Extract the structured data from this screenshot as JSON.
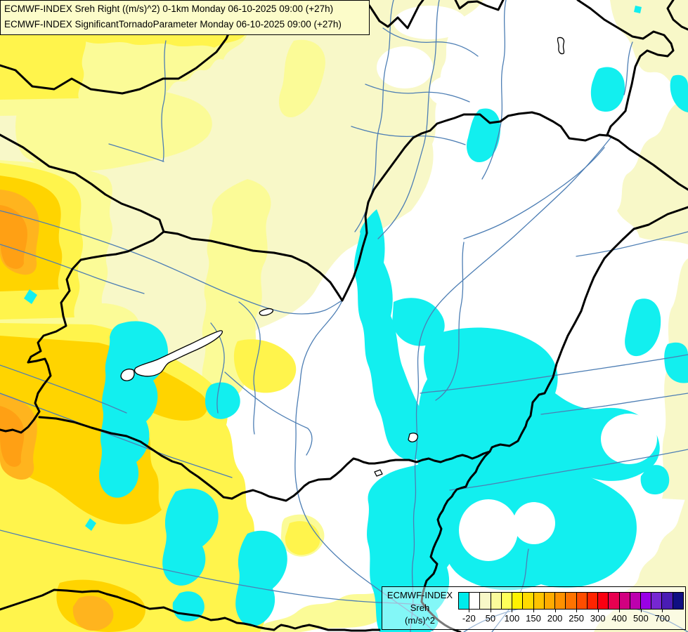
{
  "title_box": {
    "line1": "ECMWF-INDEX Sreh Right ((m/s)^2) 0-1km Monday 06-10-2025 09:00 (+27h)",
    "line2": "ECMWF-INDEX SignificantTornadoParameter Monday 06-10-2025 09:00 (+27h)"
  },
  "legend": {
    "product": "ECMWF-INDEX",
    "parameter": "Sreh",
    "units": "(m/s)^2",
    "cells": [
      "#00EBEB",
      "#FFFFFF",
      "#F8F8C8",
      "#FAFA9B",
      "#FFFF5A",
      "#FFF200",
      "#FFDB00",
      "#FFC300",
      "#FFAB00",
      "#FF9100",
      "#FF7300",
      "#FF4D00",
      "#FF2400",
      "#FA0011",
      "#E70050",
      "#D20080",
      "#BC00AE",
      "#9900E6",
      "#7627D2",
      "#4A1CB4",
      "#0F0F82"
    ],
    "ticks": [
      {
        "label": "-20",
        "boundary_index": 1
      },
      {
        "label": "50",
        "boundary_index": 3
      },
      {
        "label": "100",
        "boundary_index": 5
      },
      {
        "label": "150",
        "boundary_index": 7
      },
      {
        "label": "200",
        "boundary_index": 9
      },
      {
        "label": "250",
        "boundary_index": 11
      },
      {
        "label": "300",
        "boundary_index": 13
      },
      {
        "label": "400",
        "boundary_index": 15
      },
      {
        "label": "500",
        "boundary_index": 17
      },
      {
        "label": "700",
        "boundary_index": 19
      }
    ],
    "cell_count": 21
  },
  "map": {
    "palette": {
      "white": "#FFFFFF",
      "cream": "#F8F8C8",
      "lightyellow": "#FBFB97",
      "yellow": "#FFF44C",
      "gold": "#FFD400",
      "amber": "#FFB41E",
      "orange": "#FFA014",
      "cyan": "#12EFEF",
      "river": "#4D7EB4",
      "border": "#000000",
      "lake": "#000000",
      "title_bg": "#FCFCC9"
    },
    "features": [
      "country-borders",
      "rivers",
      "lakes",
      "sreh-filled-contours"
    ]
  }
}
